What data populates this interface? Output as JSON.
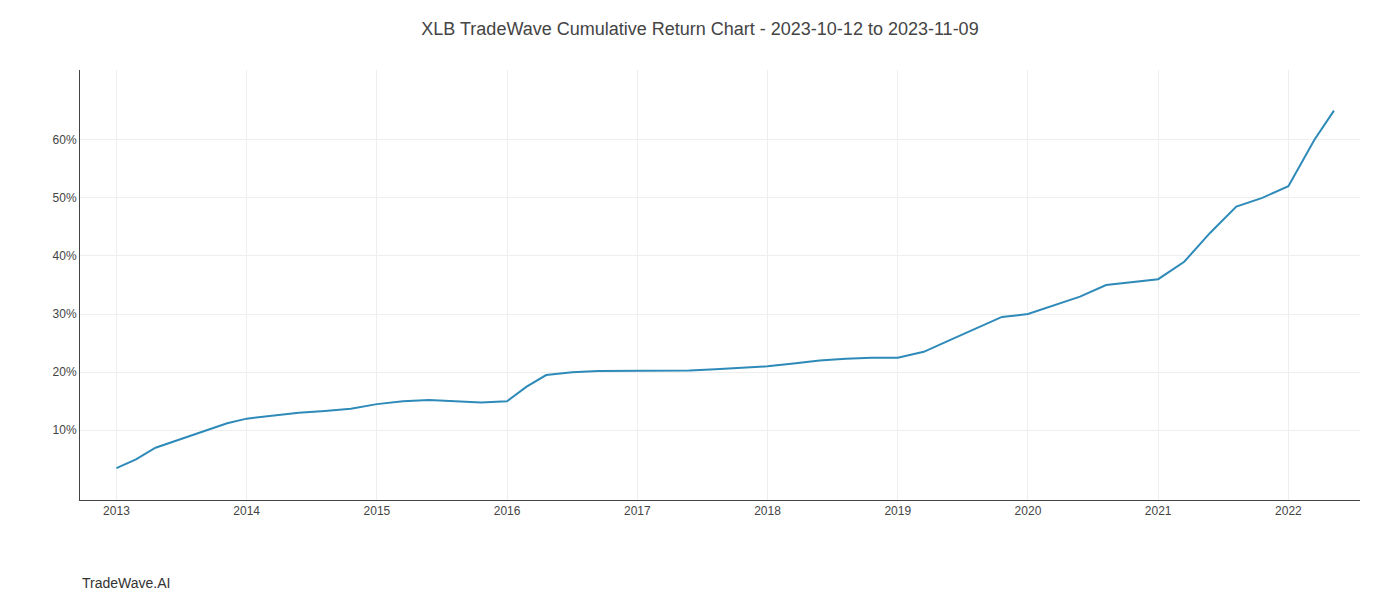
{
  "chart_data": {
    "type": "line",
    "title": "XLB TradeWave Cumulative Return Chart - 2023-10-12 to 2023-11-09",
    "annotations": [
      "TradeWave.AI"
    ],
    "color": "#2e8ab8",
    "grid": true,
    "x": [
      2013.0,
      2013.15,
      2013.3,
      2013.5,
      2013.7,
      2013.85,
      2014.0,
      2014.2,
      2014.4,
      2014.6,
      2014.8,
      2015.0,
      2015.2,
      2015.4,
      2015.6,
      2015.8,
      2016.0,
      2016.15,
      2016.3,
      2016.5,
      2016.7,
      2016.85,
      2017.0,
      2017.2,
      2017.4,
      2017.6,
      2017.8,
      2018.0,
      2018.2,
      2018.4,
      2018.6,
      2018.8,
      2019.0,
      2019.2,
      2019.4,
      2019.6,
      2019.8,
      2020.0,
      2020.2,
      2020.4,
      2020.6,
      2020.8,
      2021.0,
      2021.2,
      2021.4,
      2021.6,
      2021.8,
      2022.0,
      2022.2,
      2022.35
    ],
    "values": [
      3.5,
      5.0,
      7.0,
      8.5,
      10.0,
      11.2,
      12.0,
      12.5,
      13.0,
      13.3,
      13.7,
      14.5,
      15.0,
      15.2,
      15.0,
      14.8,
      15.0,
      17.5,
      19.5,
      20.0,
      20.2,
      20.2,
      20.2,
      20.2,
      20.3,
      20.5,
      20.8,
      21.0,
      21.5,
      22.0,
      22.3,
      22.5,
      22.5,
      23.5,
      25.5,
      27.5,
      29.5,
      30.0,
      31.5,
      33.0,
      35.0,
      35.5,
      36.0,
      39.0,
      44.0,
      48.5,
      50.0,
      52.0,
      60.0,
      65.0
    ],
    "xlim": [
      2012.72,
      2022.55
    ],
    "xticks": [
      2013,
      2014,
      2015,
      2016,
      2017,
      2018,
      2019,
      2020,
      2021,
      2022
    ],
    "ylim": [
      -2,
      72
    ],
    "yticks": [
      {
        "value": 10,
        "label": "10%"
      },
      {
        "value": 20,
        "label": "20%"
      },
      {
        "value": 30,
        "label": "30%"
      },
      {
        "value": 40,
        "label": "40%"
      },
      {
        "value": 50,
        "label": "50%"
      },
      {
        "value": 60,
        "label": "60%"
      }
    ]
  }
}
